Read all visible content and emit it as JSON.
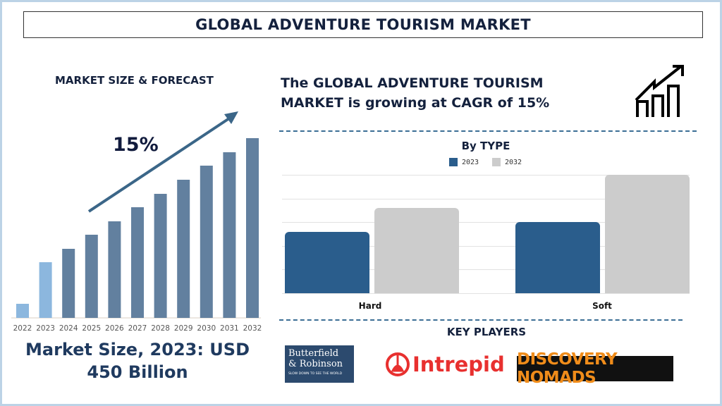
{
  "header": {
    "title": "GLOBAL ADVENTURE TOURISM MARKET"
  },
  "left": {
    "section_title": "MARKET SIZE & FORECAST",
    "cagr_label": "15%",
    "market_size_text": "Market Size, 2023: USD 450 Billion"
  },
  "right": {
    "cagr_text_line1": "The GLOBAL ADVENTURE TOURISM",
    "cagr_text_line2": "MARKET is growing at CAGR of 15%",
    "icon": "growth-chart-icon",
    "key_players_title": "KEY PLAYERS",
    "players": [
      {
        "name": "Butterfield & Robinson",
        "line1": "Butterfield",
        "line2": "& Robinson",
        "tagline": "SLOW DOWN TO SEE THE WORLD"
      },
      {
        "name": "Intrepid"
      },
      {
        "name": "DISCOVERY NOMADS"
      }
    ]
  },
  "chart_data": [
    {
      "type": "bar",
      "title": "",
      "categories": [
        "2022",
        "2023",
        "2024",
        "2025",
        "2026",
        "2027",
        "2028",
        "2029",
        "2030",
        "2031",
        "2032"
      ],
      "values": [
        20,
        79,
        98,
        118,
        137,
        157,
        176,
        196,
        216,
        235,
        255
      ],
      "colors": [
        "#8cb7de",
        "#8cb7de",
        "#62809f",
        "#62809f",
        "#62809f",
        "#62809f",
        "#62809f",
        "#62809f",
        "#62809f",
        "#62809f",
        "#62809f"
      ],
      "annotation": "15%",
      "ylim": [
        0,
        260
      ],
      "grid": false
    },
    {
      "type": "bar",
      "title": "By TYPE",
      "categories": [
        "Hard",
        "Soft"
      ],
      "series": [
        {
          "name": "2023",
          "values": [
            2.6,
            3.0
          ],
          "color": "#2a5d8c"
        },
        {
          "name": "2032",
          "values": [
            3.6,
            5.0
          ],
          "color": "#cccccc"
        }
      ],
      "ylim": [
        0,
        5
      ],
      "grid": true,
      "legend": "top"
    }
  ]
}
